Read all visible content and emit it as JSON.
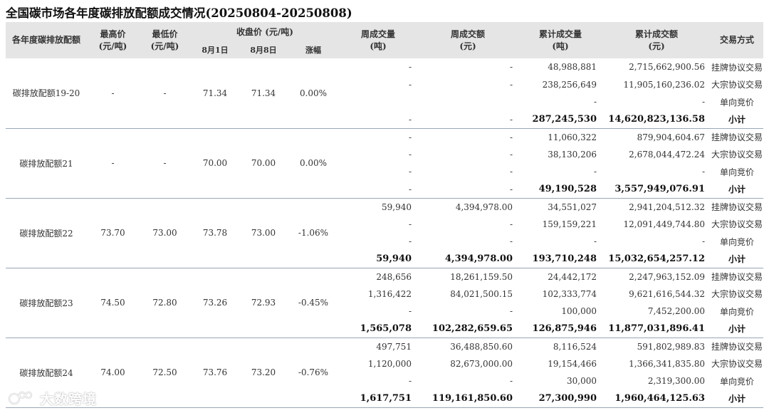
{
  "title": "全国碳市场各年度碳排放配额成交情况(20250804-20250808)",
  "headers": {
    "name": "各年度碳排放配额",
    "high": "最高价",
    "high_unit": "(元/吨)",
    "low": "最低价",
    "low_unit": "(元/吨)",
    "close": "收盘价 (元/吨)",
    "close_d1": "8月1日",
    "close_d2": "8月8日",
    "change": "涨幅",
    "week_vol": "周成交量",
    "week_vol_unit": "(吨)",
    "week_amt": "周成交额",
    "week_amt_unit": "(元)",
    "cum_vol": "累计成交量",
    "cum_vol_unit": "(吨)",
    "cum_amt": "累计成交额",
    "cum_amt_unit": "(元)",
    "mode": "交易方式"
  },
  "groups": [
    {
      "name": "碳排放配额19-20",
      "high": "-",
      "low": "-",
      "close_d1": "71.34",
      "close_d2": "71.34",
      "change": "0.00%",
      "rows": [
        {
          "week_vol": "-",
          "week_amt": "-",
          "cum_vol": "48,988,881",
          "cum_amt": "2,715,662,900.56",
          "mode": "挂牌协议交易"
        },
        {
          "week_vol": "-",
          "week_amt": "-",
          "cum_vol": "238,256,649",
          "cum_amt": "11,905,160,236.02",
          "mode": "大宗协议交易"
        },
        {
          "week_vol": "",
          "week_amt": "",
          "cum_vol": "-",
          "cum_amt": "-",
          "mode": "单向竞价"
        },
        {
          "week_vol": "-",
          "week_amt": "-",
          "cum_vol": "287,245,530",
          "cum_amt": "14,620,823,136.58",
          "mode": "小计"
        }
      ]
    },
    {
      "name": "碳排放配额21",
      "high": "-",
      "low": "-",
      "close_d1": "70.00",
      "close_d2": "70.00",
      "change": "0.00%",
      "rows": [
        {
          "week_vol": "-",
          "week_amt": "-",
          "cum_vol": "11,060,322",
          "cum_amt": "879,904,604.67",
          "mode": "挂牌协议交易"
        },
        {
          "week_vol": "-",
          "week_amt": "-",
          "cum_vol": "38,130,206",
          "cum_amt": "2,678,044,472.24",
          "mode": "大宗协议交易"
        },
        {
          "week_vol": "-",
          "week_amt": "-",
          "cum_vol": "-",
          "cum_amt": "-",
          "mode": "单向竞价"
        },
        {
          "week_vol": "-",
          "week_amt": "-",
          "cum_vol": "49,190,528",
          "cum_amt": "3,557,949,076.91",
          "mode": "小计"
        }
      ]
    },
    {
      "name": "碳排放配额22",
      "high": "73.70",
      "low": "73.00",
      "close_d1": "73.78",
      "close_d2": "73.00",
      "change": "-1.06%",
      "rows": [
        {
          "week_vol": "59,940",
          "week_amt": "4,394,978.00",
          "cum_vol": "34,551,027",
          "cum_amt": "2,941,204,512.32",
          "mode": "挂牌协议交易"
        },
        {
          "week_vol": "-",
          "week_amt": "-",
          "cum_vol": "159,159,221",
          "cum_amt": "12,091,449,744.80",
          "mode": "大宗协议交易"
        },
        {
          "week_vol": "-",
          "week_amt": "-",
          "cum_vol": "-",
          "cum_amt": "-",
          "mode": "单向竞价"
        },
        {
          "week_vol": "59,940",
          "week_amt": "4,394,978.00",
          "cum_vol": "193,710,248",
          "cum_amt": "15,032,654,257.12",
          "mode": "小计"
        }
      ]
    },
    {
      "name": "碳排放配额23",
      "high": "74.50",
      "low": "72.80",
      "close_d1": "73.26",
      "close_d2": "72.93",
      "change": "-0.45%",
      "rows": [
        {
          "week_vol": "248,656",
          "week_amt": "18,261,159.50",
          "cum_vol": "24,442,172",
          "cum_amt": "2,247,963,152.09",
          "mode": "挂牌协议交易"
        },
        {
          "week_vol": "1,316,422",
          "week_amt": "84,021,500.15",
          "cum_vol": "102,333,774",
          "cum_amt": "9,621,616,544.32",
          "mode": "大宗协议交易"
        },
        {
          "week_vol": "-",
          "week_amt": "-",
          "cum_vol": "100,000",
          "cum_amt": "7,452,200.00",
          "mode": "单向竞价"
        },
        {
          "week_vol": "1,565,078",
          "week_amt": "102,282,659.65",
          "cum_vol": "126,875,946",
          "cum_amt": "11,877,031,896.41",
          "mode": "小计"
        }
      ]
    },
    {
      "name": "碳排放配额24",
      "high": "74.00",
      "low": "72.50",
      "close_d1": "73.76",
      "close_d2": "73.20",
      "change": "-0.76%",
      "rows": [
        {
          "week_vol": "497,751",
          "week_amt": "36,488,850.60",
          "cum_vol": "8,116,524",
          "cum_amt": "591,802,989.83",
          "mode": "挂牌协议交易"
        },
        {
          "week_vol": "1,120,000",
          "week_amt": "82,673,000.00",
          "cum_vol": "19,154,466",
          "cum_amt": "1,366,341,835.80",
          "mode": "大宗协议交易"
        },
        {
          "week_vol": "-",
          "week_amt": "-",
          "cum_vol": "30,000",
          "cum_amt": "2,319,300.00",
          "mode": "单向竞价"
        },
        {
          "week_vol": "1,617,751",
          "week_amt": "119,161,850.60",
          "cum_vol": "27,300,990",
          "cum_amt": "1,960,464,125.63",
          "mode": "小计"
        }
      ]
    }
  ],
  "watermark": {
    "text": "大数跨境",
    "icon": "dashuju-logo-icon"
  }
}
